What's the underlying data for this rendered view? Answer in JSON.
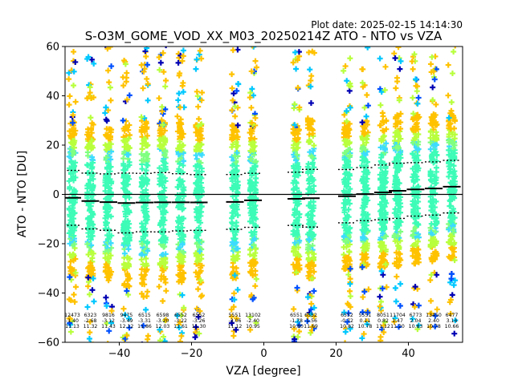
{
  "header": {
    "plot_date": "Plot date: 2025-02-15 14:14:30",
    "title": "S-O3M_GOME_VOD_XX_M03_20250214Z ATO - NTO vs VZA"
  },
  "chart_data": {
    "type": "scatter",
    "title": "S-O3M_GOME_VOD_XX_M03_20250214Z ATO - NTO vs VZA",
    "xlabel": "VZA [degree]",
    "ylabel": "ATO - NTO [DU]",
    "xlim": [
      -55,
      55
    ],
    "ylim": [
      -60,
      60
    ],
    "xticks": [
      -40,
      -20,
      0,
      20,
      40
    ],
    "yticks": [
      -60,
      -40,
      -20,
      0,
      20,
      40,
      60
    ],
    "grid": false,
    "zero_line": 0,
    "bins": [
      {
        "x": -53,
        "count": "12473",
        "mean": "-1.40",
        "std": "11.13",
        "spread": 52
      },
      {
        "x": -48,
        "count": "6323",
        "mean": "-2.68",
        "std": "11.32",
        "spread": 50
      },
      {
        "x": -43,
        "count": "9816",
        "mean": "-3.12",
        "std": "11.43",
        "spread": 52
      },
      {
        "x": -38,
        "count": "9475",
        "mean": "-3.49",
        "std": "12.12",
        "spread": 52
      },
      {
        "x": -33,
        "count": "6515",
        "mean": "-3.31",
        "std": "11.86",
        "spread": 50
      },
      {
        "x": -28,
        "count": "6598",
        "mean": "-3.20",
        "std": "12.03",
        "spread": 48
      },
      {
        "x": -23,
        "count": "6552",
        "mean": "-3.22",
        "std": "11.61",
        "spread": 48
      },
      {
        "x": -18,
        "count": "6552",
        "mean": "-3.26",
        "std": "11.30",
        "spread": 46
      },
      {
        "x": -8,
        "count": "5551",
        "mean": "-3.06",
        "std": "11.12",
        "spread": 52
      },
      {
        "x": -3,
        "count": "13102",
        "mean": "-2.40",
        "std": "10.95",
        "spread": 52
      },
      {
        "x": 9,
        "count": "6551",
        "mean": "-1.78",
        "std": "10.80",
        "spread": 54
      },
      {
        "x": 13,
        "count": "6552",
        "mean": "-1.56",
        "std": "11.69",
        "spread": 56
      },
      {
        "x": 23,
        "count": "6552",
        "mean": "-0.72",
        "std": "10.82",
        "spread": 52
      },
      {
        "x": 28,
        "count": "5551",
        "mean": "0.11",
        "std": "10.78",
        "spread": 54
      },
      {
        "x": 33,
        "count": "8051",
        "mean": "0.82",
        "std": "11.12",
        "spread": 54
      },
      {
        "x": 37,
        "count": "11704",
        "mean": "1.47",
        "std": "11.20",
        "spread": 56
      },
      {
        "x": 42,
        "count": "6773",
        "mean": "2.04",
        "std": "10.83",
        "spread": 56
      },
      {
        "x": 47,
        "count": "13450",
        "mean": "2.40",
        "std": "10.78",
        "spread": 56
      },
      {
        "x": 52,
        "count": "6477",
        "mean": "3.14",
        "std": "10.66",
        "spread": 56
      }
    ]
  }
}
